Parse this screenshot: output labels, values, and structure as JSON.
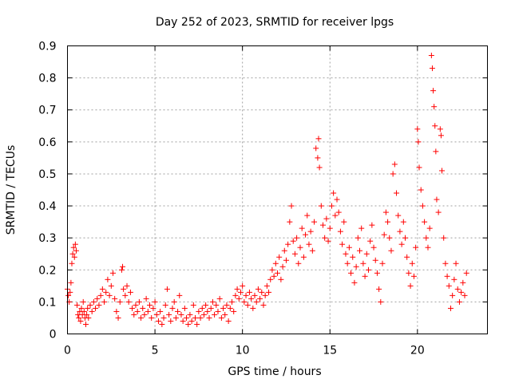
{
  "chart_data": {
    "type": "scatter",
    "title": "Day 252 of 2023, SRMTID for receiver lpgs",
    "xlabel": "GPS time / hours",
    "ylabel": "SRMTID / TECUs",
    "xlim": [
      0,
      24
    ],
    "ylim": [
      0,
      0.9
    ],
    "xticks": [
      0,
      5,
      10,
      15,
      20
    ],
    "yticks": [
      0,
      0.1,
      0.2,
      0.3,
      0.4,
      0.5,
      0.6,
      0.7,
      0.8,
      0.9
    ],
    "ytick_labels": [
      "0",
      "0.1",
      "0.2",
      "0.3",
      "0.4",
      "0.5",
      "0.6",
      "0.7",
      "0.8",
      "0.9"
    ],
    "grid": true,
    "marker": "+",
    "series": [
      {
        "name": "SRMTID",
        "color": "#ff0000",
        "points": [
          [
            0.0,
            0.14
          ],
          [
            0.05,
            0.12
          ],
          [
            0.1,
            0.1
          ],
          [
            0.15,
            0.13
          ],
          [
            0.2,
            0.16
          ],
          [
            0.25,
            0.22
          ],
          [
            0.3,
            0.25
          ],
          [
            0.35,
            0.27
          ],
          [
            0.4,
            0.24
          ],
          [
            0.45,
            0.28
          ],
          [
            0.5,
            0.26
          ],
          [
            0.55,
            0.09
          ],
          [
            0.6,
            0.06
          ],
          [
            0.65,
            0.05
          ],
          [
            0.7,
            0.07
          ],
          [
            0.75,
            0.04
          ],
          [
            0.8,
            0.08
          ],
          [
            0.85,
            0.06
          ],
          [
            0.9,
            0.1
          ],
          [
            0.95,
            0.07
          ],
          [
            1.0,
            0.05
          ],
          [
            1.05,
            0.03
          ],
          [
            1.1,
            0.06
          ],
          [
            1.15,
            0.08
          ],
          [
            1.2,
            0.05
          ],
          [
            1.3,
            0.09
          ],
          [
            1.4,
            0.07
          ],
          [
            1.5,
            0.1
          ],
          [
            1.6,
            0.08
          ],
          [
            1.7,
            0.11
          ],
          [
            1.8,
            0.09
          ],
          [
            1.9,
            0.12
          ],
          [
            2.0,
            0.14
          ],
          [
            2.1,
            0.1
          ],
          [
            2.2,
            0.13
          ],
          [
            2.3,
            0.17
          ],
          [
            2.4,
            0.12
          ],
          [
            2.5,
            0.15
          ],
          [
            2.6,
            0.19
          ],
          [
            2.7,
            0.11
          ],
          [
            2.8,
            0.07
          ],
          [
            2.9,
            0.05
          ],
          [
            3.0,
            0.1
          ],
          [
            3.1,
            0.2
          ],
          [
            3.15,
            0.21
          ],
          [
            3.2,
            0.14
          ],
          [
            3.3,
            0.12
          ],
          [
            3.4,
            0.15
          ],
          [
            3.5,
            0.1
          ],
          [
            3.6,
            0.13
          ],
          [
            3.7,
            0.08
          ],
          [
            3.8,
            0.06
          ],
          [
            3.9,
            0.09
          ],
          [
            4.0,
            0.07
          ],
          [
            4.1,
            0.1
          ],
          [
            4.2,
            0.05
          ],
          [
            4.3,
            0.08
          ],
          [
            4.4,
            0.06
          ],
          [
            4.5,
            0.11
          ],
          [
            4.6,
            0.07
          ],
          [
            4.7,
            0.09
          ],
          [
            4.8,
            0.05
          ],
          [
            4.9,
            0.08
          ],
          [
            5.0,
            0.1
          ],
          [
            5.1,
            0.06
          ],
          [
            5.2,
            0.04
          ],
          [
            5.3,
            0.07
          ],
          [
            5.4,
            0.03
          ],
          [
            5.5,
            0.05
          ],
          [
            5.6,
            0.09
          ],
          [
            5.7,
            0.14
          ],
          [
            5.8,
            0.06
          ],
          [
            5.9,
            0.04
          ],
          [
            6.0,
            0.08
          ],
          [
            6.1,
            0.1
          ],
          [
            6.2,
            0.05
          ],
          [
            6.3,
            0.07
          ],
          [
            6.4,
            0.12
          ],
          [
            6.5,
            0.06
          ],
          [
            6.6,
            0.04
          ],
          [
            6.7,
            0.08
          ],
          [
            6.8,
            0.05
          ],
          [
            6.9,
            0.03
          ],
          [
            7.0,
            0.06
          ],
          [
            7.1,
            0.04
          ],
          [
            7.2,
            0.09
          ],
          [
            7.3,
            0.05
          ],
          [
            7.4,
            0.03
          ],
          [
            7.5,
            0.07
          ],
          [
            7.6,
            0.05
          ],
          [
            7.7,
            0.08
          ],
          [
            7.8,
            0.06
          ],
          [
            7.9,
            0.09
          ],
          [
            8.0,
            0.07
          ],
          [
            8.1,
            0.05
          ],
          [
            8.2,
            0.08
          ],
          [
            8.3,
            0.1
          ],
          [
            8.4,
            0.06
          ],
          [
            8.5,
            0.09
          ],
          [
            8.6,
            0.07
          ],
          [
            8.7,
            0.11
          ],
          [
            8.8,
            0.05
          ],
          [
            8.9,
            0.08
          ],
          [
            9.0,
            0.06
          ],
          [
            9.1,
            0.09
          ],
          [
            9.2,
            0.04
          ],
          [
            9.3,
            0.08
          ],
          [
            9.4,
            0.1
          ],
          [
            9.5,
            0.07
          ],
          [
            9.6,
            0.12
          ],
          [
            9.7,
            0.14
          ],
          [
            9.8,
            0.11
          ],
          [
            9.9,
            0.13
          ],
          [
            10.0,
            0.15
          ],
          [
            10.1,
            0.1
          ],
          [
            10.2,
            0.12
          ],
          [
            10.3,
            0.09
          ],
          [
            10.4,
            0.13
          ],
          [
            10.5,
            0.11
          ],
          [
            10.6,
            0.08
          ],
          [
            10.7,
            0.12
          ],
          [
            10.8,
            0.1
          ],
          [
            10.9,
            0.14
          ],
          [
            11.0,
            0.11
          ],
          [
            11.1,
            0.13
          ],
          [
            11.2,
            0.09
          ],
          [
            11.3,
            0.12
          ],
          [
            11.4,
            0.15
          ],
          [
            11.5,
            0.13
          ],
          [
            11.6,
            0.17
          ],
          [
            11.7,
            0.2
          ],
          [
            11.8,
            0.18
          ],
          [
            11.9,
            0.22
          ],
          [
            12.0,
            0.19
          ],
          [
            12.1,
            0.24
          ],
          [
            12.2,
            0.17
          ],
          [
            12.3,
            0.21
          ],
          [
            12.4,
            0.26
          ],
          [
            12.5,
            0.23
          ],
          [
            12.6,
            0.28
          ],
          [
            12.7,
            0.35
          ],
          [
            12.8,
            0.4
          ],
          [
            12.9,
            0.29
          ],
          [
            13.0,
            0.25
          ],
          [
            13.1,
            0.3
          ],
          [
            13.2,
            0.22
          ],
          [
            13.3,
            0.27
          ],
          [
            13.4,
            0.33
          ],
          [
            13.5,
            0.24
          ],
          [
            13.6,
            0.31
          ],
          [
            13.7,
            0.37
          ],
          [
            13.8,
            0.28
          ],
          [
            13.9,
            0.32
          ],
          [
            14.0,
            0.26
          ],
          [
            14.1,
            0.35
          ],
          [
            14.2,
            0.58
          ],
          [
            14.3,
            0.55
          ],
          [
            14.35,
            0.61
          ],
          [
            14.4,
            0.52
          ],
          [
            14.5,
            0.4
          ],
          [
            14.6,
            0.34
          ],
          [
            14.7,
            0.3
          ],
          [
            14.8,
            0.36
          ],
          [
            14.9,
            0.29
          ],
          [
            15.0,
            0.33
          ],
          [
            15.1,
            0.4
          ],
          [
            15.2,
            0.44
          ],
          [
            15.3,
            0.37
          ],
          [
            15.4,
            0.42
          ],
          [
            15.5,
            0.38
          ],
          [
            15.6,
            0.32
          ],
          [
            15.7,
            0.28
          ],
          [
            15.8,
            0.35
          ],
          [
            15.9,
            0.25
          ],
          [
            16.0,
            0.22
          ],
          [
            16.1,
            0.27
          ],
          [
            16.2,
            0.19
          ],
          [
            16.3,
            0.24
          ],
          [
            16.4,
            0.16
          ],
          [
            16.5,
            0.21
          ],
          [
            16.6,
            0.3
          ],
          [
            16.7,
            0.26
          ],
          [
            16.8,
            0.33
          ],
          [
            16.9,
            0.22
          ],
          [
            17.0,
            0.18
          ],
          [
            17.1,
            0.25
          ],
          [
            17.2,
            0.2
          ],
          [
            17.3,
            0.29
          ],
          [
            17.4,
            0.34
          ],
          [
            17.5,
            0.27
          ],
          [
            17.6,
            0.23
          ],
          [
            17.7,
            0.19
          ],
          [
            17.8,
            0.14
          ],
          [
            17.9,
            0.1
          ],
          [
            18.0,
            0.22
          ],
          [
            18.1,
            0.31
          ],
          [
            18.2,
            0.38
          ],
          [
            18.3,
            0.35
          ],
          [
            18.4,
            0.3
          ],
          [
            18.5,
            0.26
          ],
          [
            18.6,
            0.5
          ],
          [
            18.7,
            0.53
          ],
          [
            18.8,
            0.44
          ],
          [
            18.9,
            0.37
          ],
          [
            19.0,
            0.32
          ],
          [
            19.1,
            0.28
          ],
          [
            19.2,
            0.35
          ],
          [
            19.3,
            0.3
          ],
          [
            19.4,
            0.24
          ],
          [
            19.5,
            0.19
          ],
          [
            19.6,
            0.15
          ],
          [
            19.7,
            0.22
          ],
          [
            19.8,
            0.18
          ],
          [
            19.9,
            0.27
          ],
          [
            20.0,
            0.64
          ],
          [
            20.05,
            0.6
          ],
          [
            20.1,
            0.52
          ],
          [
            20.2,
            0.45
          ],
          [
            20.3,
            0.4
          ],
          [
            20.4,
            0.35
          ],
          [
            20.5,
            0.3
          ],
          [
            20.6,
            0.27
          ],
          [
            20.7,
            0.33
          ],
          [
            20.8,
            0.87
          ],
          [
            20.85,
            0.83
          ],
          [
            20.9,
            0.76
          ],
          [
            20.95,
            0.71
          ],
          [
            21.0,
            0.65
          ],
          [
            21.05,
            0.57
          ],
          [
            21.1,
            0.42
          ],
          [
            21.2,
            0.38
          ],
          [
            21.3,
            0.64
          ],
          [
            21.35,
            0.62
          ],
          [
            21.4,
            0.51
          ],
          [
            21.5,
            0.3
          ],
          [
            21.6,
            0.22
          ],
          [
            21.7,
            0.18
          ],
          [
            21.8,
            0.15
          ],
          [
            21.9,
            0.08
          ],
          [
            22.0,
            0.12
          ],
          [
            22.1,
            0.17
          ],
          [
            22.2,
            0.22
          ],
          [
            22.3,
            0.14
          ],
          [
            22.4,
            0.1
          ],
          [
            22.5,
            0.13
          ],
          [
            22.6,
            0.16
          ],
          [
            22.7,
            0.12
          ],
          [
            22.8,
            0.19
          ]
        ]
      }
    ]
  }
}
